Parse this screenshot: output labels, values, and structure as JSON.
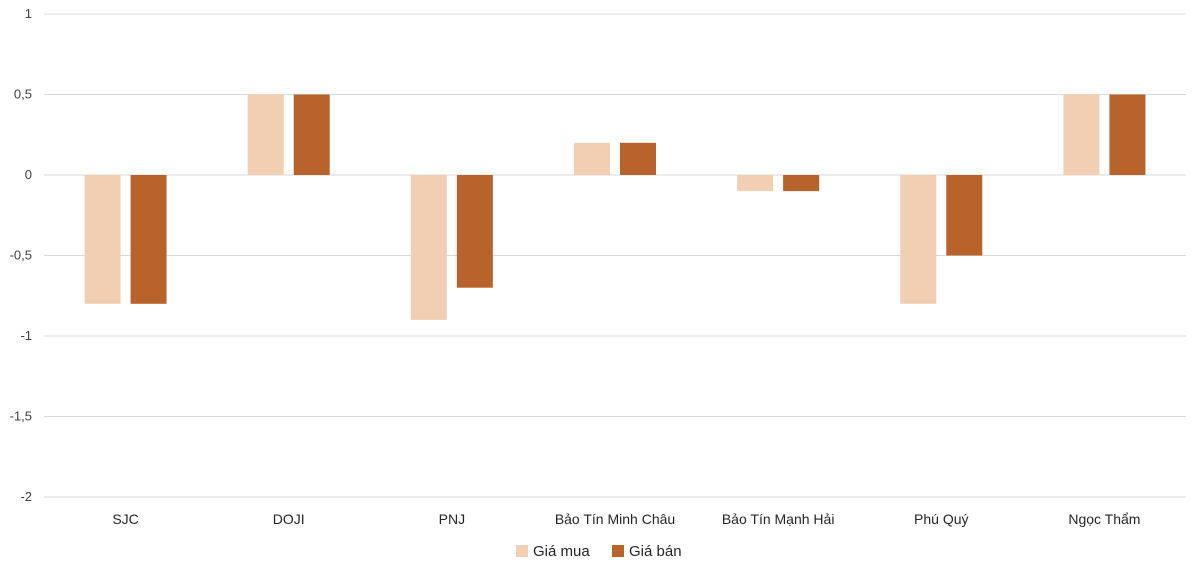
{
  "chart_data": {
    "type": "bar",
    "categories": [
      "SJC",
      "DOJI",
      "PNJ",
      "Bảo Tín Minh Châu",
      "Bảo Tín Mạnh Hải",
      "Phú Quý",
      "Ngọc Thẩm"
    ],
    "series": [
      {
        "name": "Giá mua",
        "color": "#f2cfb3",
        "values": [
          -0.8,
          0.5,
          -0.9,
          0.2,
          -0.1,
          -0.8,
          0.5
        ]
      },
      {
        "name": "Giá bán",
        "color": "#b8622c",
        "values": [
          -0.8,
          0.5,
          -0.7,
          0.2,
          -0.1,
          -0.5,
          0.5
        ]
      }
    ],
    "ylim": [
      -2,
      1
    ],
    "yticks": [
      1,
      0.5,
      0,
      -0.5,
      -1,
      -1.5,
      -2
    ],
    "ytick_labels": [
      "1",
      "0,5",
      "0",
      "-0,5",
      "-1",
      "-1,5",
      "-2"
    ],
    "grid": true,
    "legend_position": "bottom",
    "gridline_color": "#d9d9d9"
  }
}
